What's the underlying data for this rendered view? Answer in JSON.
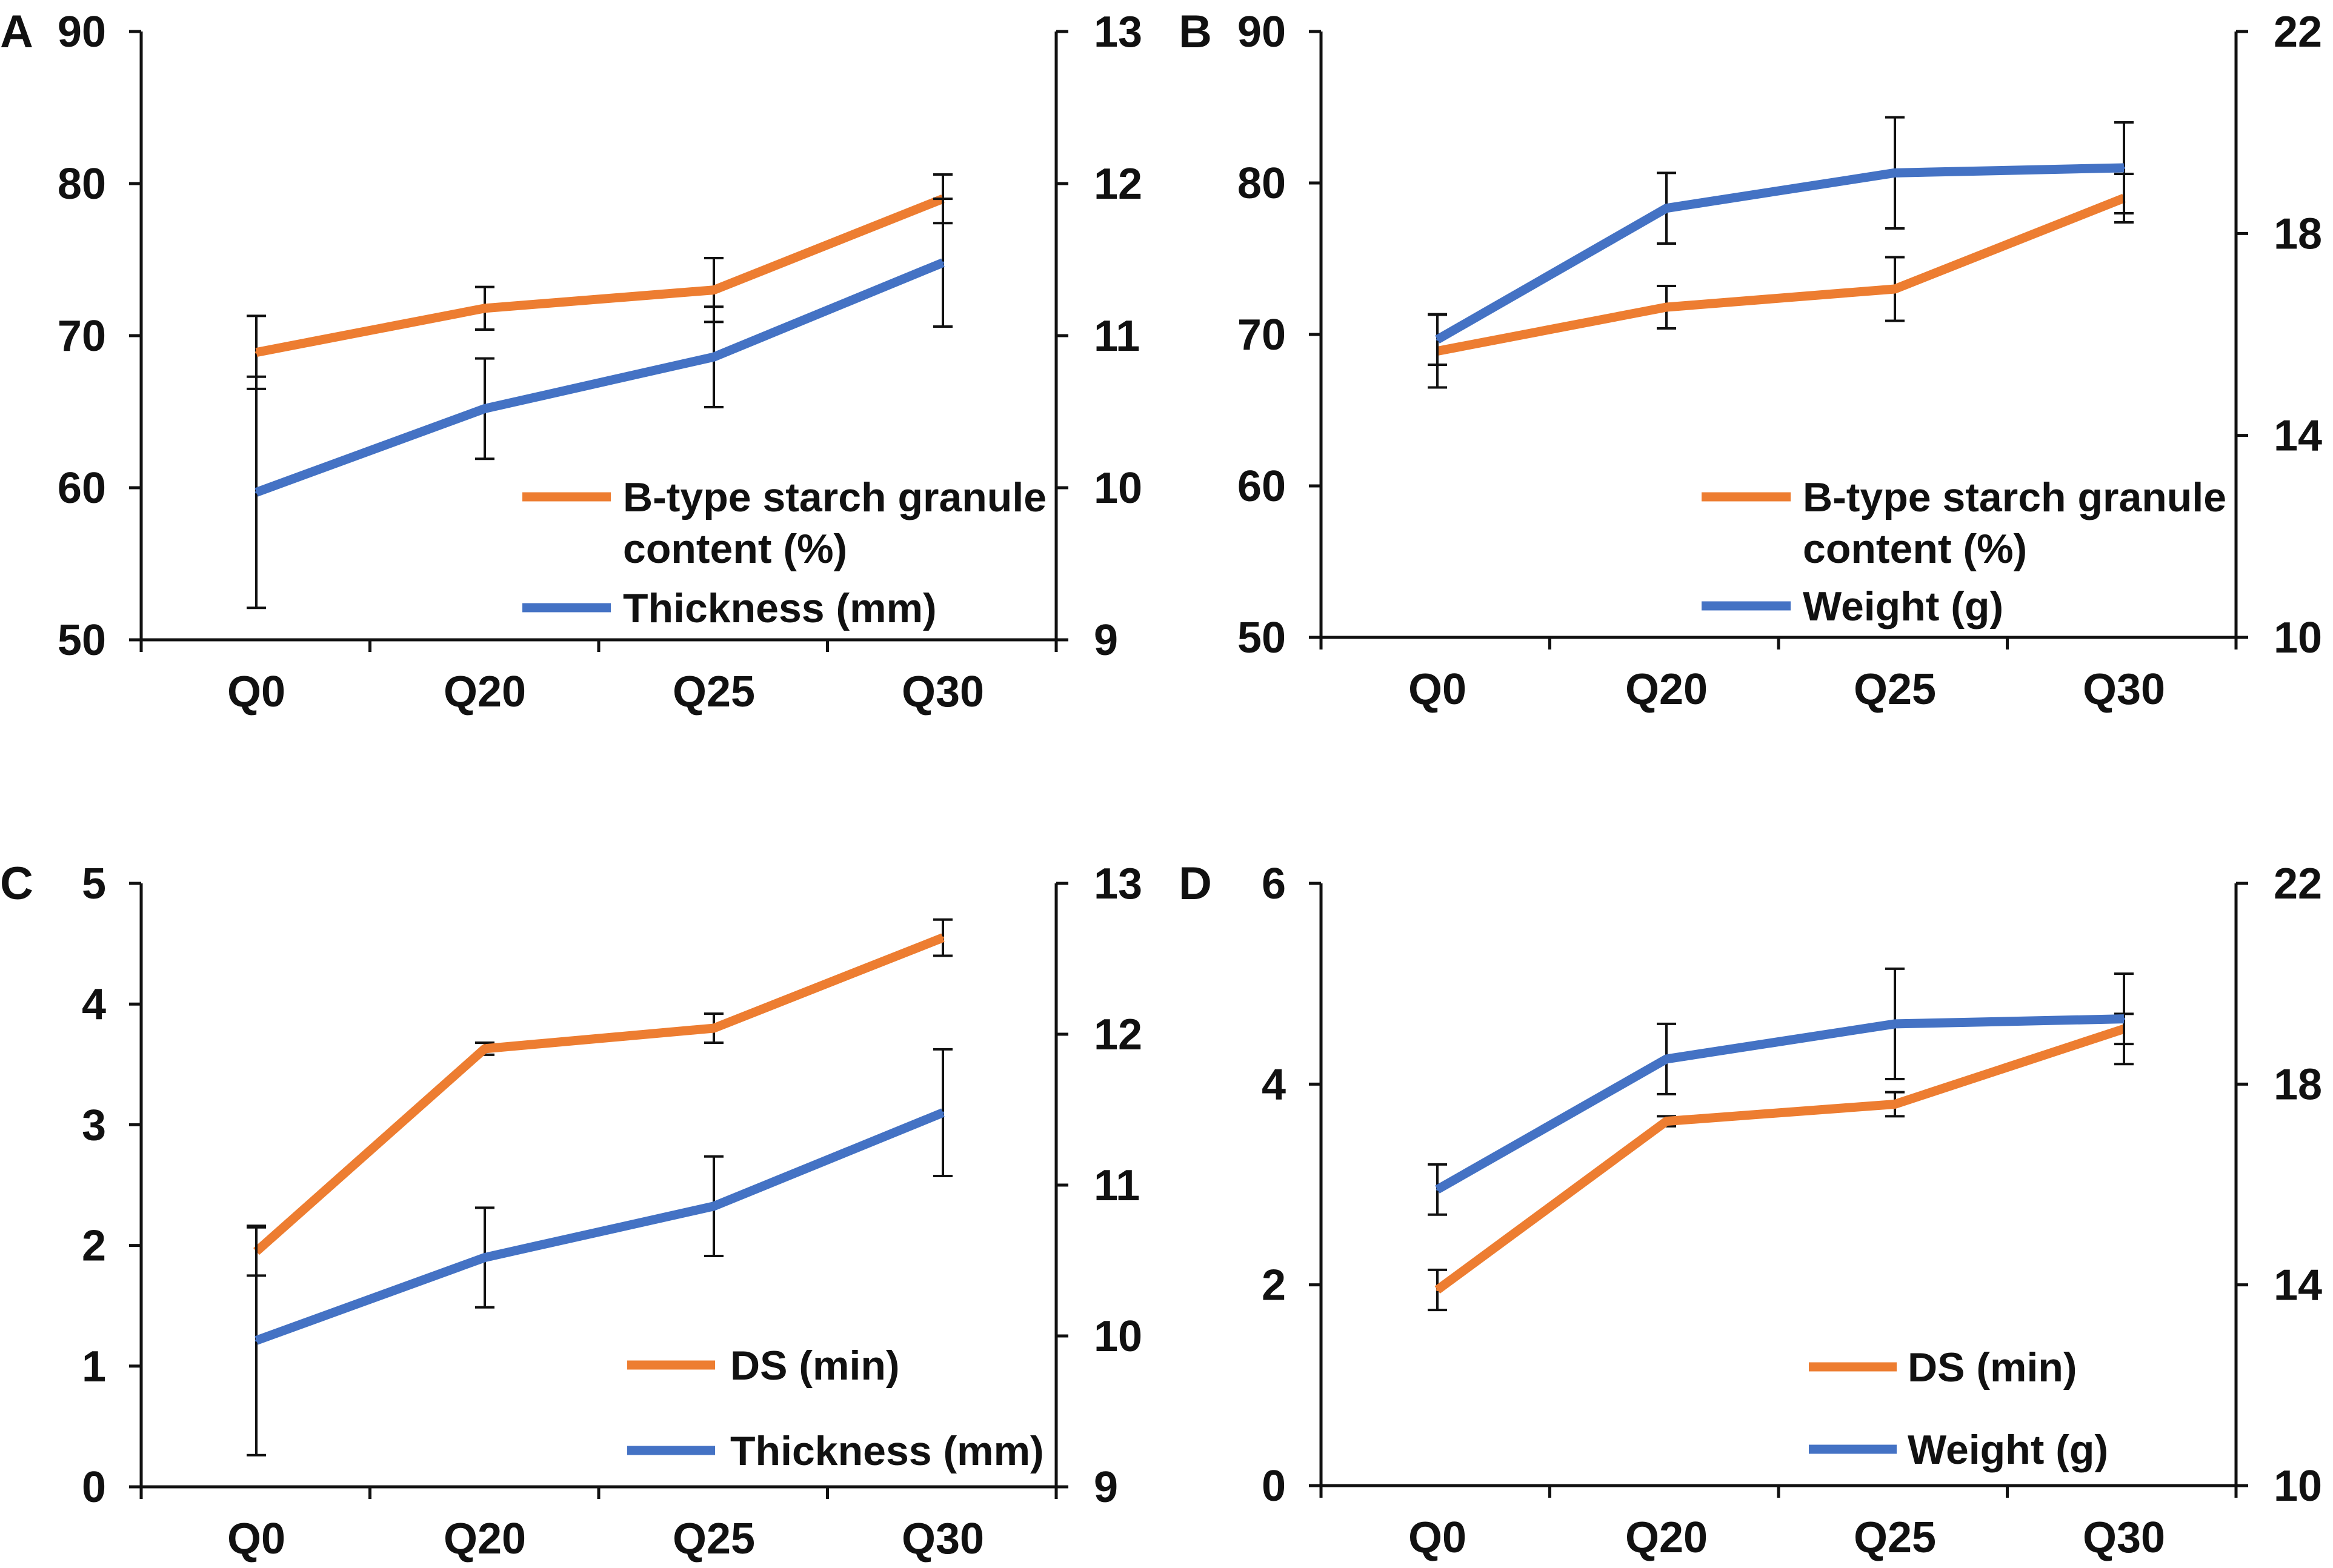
{
  "colors": {
    "orange": "#ED7D31",
    "blue": "#4472C4",
    "axis": "#111111"
  },
  "chart_data": [
    {
      "panel": "A",
      "type": "line",
      "categories": [
        "Q0",
        "Q20",
        "Q25",
        "Q30"
      ],
      "left_axis": {
        "ylim": [
          50,
          90
        ],
        "ticks": [
          "50",
          "60",
          "70",
          "80",
          "90"
        ]
      },
      "right_axis": {
        "ylim": [
          9,
          13
        ],
        "ticks": [
          "9",
          "10",
          "11",
          "12",
          "13"
        ]
      },
      "series": [
        {
          "name": "B-type starch granule",
          "name_line2": "content (%)",
          "color": "orange",
          "axis": "left",
          "values": [
            68.9,
            71.8,
            73.0,
            79.0
          ],
          "errors": [
            2.4,
            1.4,
            2.1,
            1.6
          ]
        },
        {
          "name": "Thickness (mm)",
          "color": "blue",
          "axis": "right",
          "values": [
            9.97,
            10.52,
            10.86,
            11.48
          ],
          "errors": [
            0.76,
            0.33,
            0.33,
            0.42
          ]
        }
      ],
      "legend_position": "bottom-right"
    },
    {
      "panel": "B",
      "type": "line",
      "categories": [
        "Q0",
        "Q20",
        "Q25",
        "Q30"
      ],
      "left_axis": {
        "ylim": [
          50,
          90
        ],
        "ticks": [
          "50",
          "60",
          "70",
          "80",
          "90"
        ]
      },
      "right_axis": {
        "ylim": [
          10,
          22
        ],
        "ticks": [
          "10",
          "14",
          "18",
          "22"
        ]
      },
      "series": [
        {
          "name": "B-type starch granule",
          "name_line2": "content (%)",
          "color": "orange",
          "axis": "left",
          "values": [
            68.9,
            71.8,
            73.0,
            79.0
          ],
          "errors": [
            2.4,
            1.4,
            2.1,
            1.6
          ]
        },
        {
          "name": "Weight (g)",
          "color": "blue",
          "axis": "right",
          "values": [
            15.9,
            18.5,
            19.2,
            19.3
          ],
          "errors": [
            0.5,
            0.7,
            1.1,
            0.9
          ]
        }
      ],
      "legend_position": "bottom-right"
    },
    {
      "panel": "C",
      "type": "line",
      "categories": [
        "Q0",
        "Q20",
        "Q25",
        "Q30"
      ],
      "left_axis": {
        "ylim": [
          0,
          5
        ],
        "ticks": [
          "0",
          "1",
          "2",
          "3",
          "4",
          "5"
        ]
      },
      "right_axis": {
        "ylim": [
          9,
          13
        ],
        "ticks": [
          "9",
          "10",
          "11",
          "12",
          "13"
        ]
      },
      "series": [
        {
          "name": "DS (min)",
          "color": "orange",
          "axis": "left",
          "values": [
            1.95,
            3.63,
            3.8,
            4.55
          ],
          "errors": [
            0.2,
            0.05,
            0.12,
            0.15
          ]
        },
        {
          "name": "Thickness (mm)",
          "color": "blue",
          "axis": "right",
          "values": [
            9.97,
            10.52,
            10.86,
            11.48
          ],
          "errors": [
            0.76,
            0.33,
            0.33,
            0.42
          ]
        }
      ],
      "legend_position": "bottom-right"
    },
    {
      "panel": "D",
      "type": "line",
      "categories": [
        "Q0",
        "Q20",
        "Q25",
        "Q30"
      ],
      "left_axis": {
        "ylim": [
          0,
          6
        ],
        "ticks": [
          "0",
          "2",
          "4",
          "6"
        ]
      },
      "right_axis": {
        "ylim": [
          10,
          22
        ],
        "ticks": [
          "10",
          "14",
          "18",
          "22"
        ]
      },
      "series": [
        {
          "name": "DS (min)",
          "color": "orange",
          "axis": "left",
          "values": [
            1.95,
            3.63,
            3.8,
            4.55
          ],
          "errors": [
            0.2,
            0.05,
            0.12,
            0.15
          ]
        },
        {
          "name": "Weight (g)",
          "color": "blue",
          "axis": "right",
          "values": [
            15.9,
            18.5,
            19.2,
            19.3
          ],
          "errors": [
            0.5,
            0.7,
            1.1,
            0.9
          ]
        }
      ],
      "legend_position": "bottom-right"
    }
  ]
}
